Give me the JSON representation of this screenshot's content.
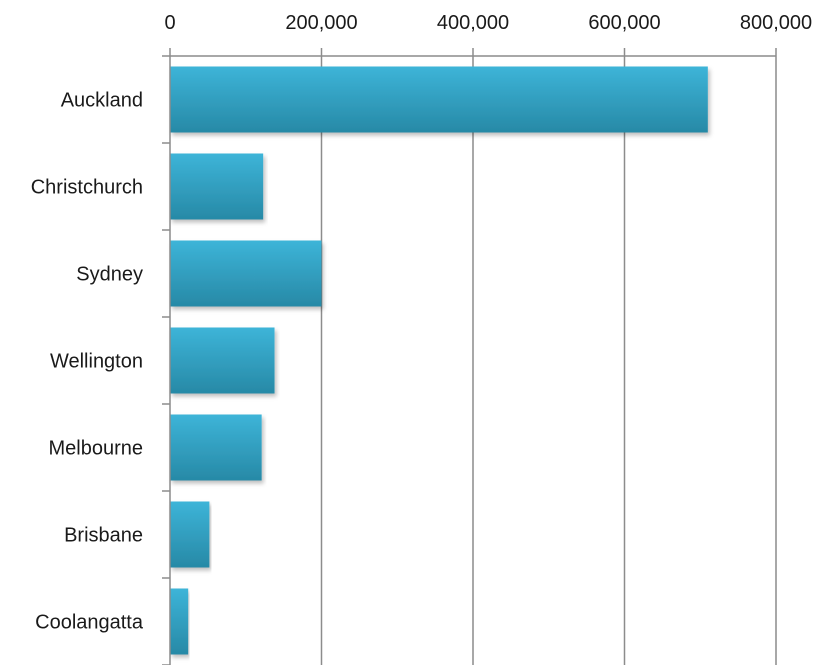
{
  "chart_data": {
    "type": "bar",
    "orientation": "horizontal",
    "title": "",
    "xlabel": "",
    "ylabel": "",
    "categories": [
      "Auckland",
      "Christchurch",
      "Sydney",
      "Wellington",
      "Melbourne",
      "Brisbane",
      "Coolangatta"
    ],
    "values": [
      710000,
      123000,
      200000,
      138000,
      121000,
      52000,
      24000
    ],
    "xlim": [
      0,
      800000
    ],
    "x_ticks": [
      0,
      200000,
      400000,
      600000,
      800000
    ],
    "x_tick_labels": [
      "0",
      "200,000",
      "400,000",
      "600,000",
      "800,000"
    ],
    "x_axis_position": "top",
    "grid": "vertical",
    "legend": "none",
    "colors": {
      "bar_light": "#3db4d8",
      "bar_dark": "#2789a6",
      "grid": "#8c8c8c",
      "axis": "#8c8c8c"
    }
  }
}
